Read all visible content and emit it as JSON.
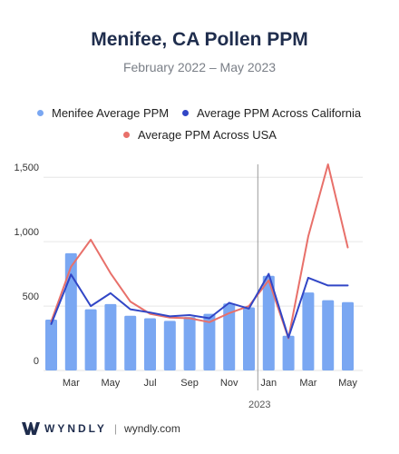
{
  "header": {
    "title": "Menifee, CA Pollen PPM",
    "subtitle": "February 2022 – May 2023"
  },
  "footer": {
    "brand": "WYNDLY",
    "separator": "|",
    "site": "wyndly.com"
  },
  "colors": {
    "bar": "#7aa7f2",
    "california": "#3146c6",
    "usa": "#e8706a",
    "grid": "#e6e6e6",
    "axis": "#9a9a9a"
  },
  "chart_data": {
    "type": "bar",
    "title": "Menifee, CA Pollen PPM",
    "subtitle": "February 2022 – May 2023",
    "categories": [
      "Feb 2022",
      "Mar 2022",
      "Apr 2022",
      "May 2022",
      "Jun 2022",
      "Jul 2022",
      "Aug 2022",
      "Sep 2022",
      "Oct 2022",
      "Nov 2022",
      "Dec 2022",
      "Jan 2023",
      "Feb 2023",
      "Mar 2023",
      "Apr 2023",
      "May 2023"
    ],
    "x_tick_labels": [
      "",
      "Mar",
      "",
      "May",
      "",
      "Jul",
      "",
      "Sep",
      "",
      "Nov",
      "",
      "Jan",
      "",
      "Mar",
      "",
      "May"
    ],
    "year_marker": {
      "label": "2023",
      "at_index": 11
    },
    "series": [
      {
        "name": "Menifee Average PPM",
        "type": "bar",
        "values": [
          395,
          910,
          475,
          515,
          425,
          405,
          385,
          415,
          440,
          520,
          490,
          735,
          270,
          605,
          545,
          530
        ]
      },
      {
        "name": "Average PPM Across California",
        "type": "line",
        "values": [
          360,
          745,
          500,
          600,
          475,
          450,
          420,
          430,
          405,
          525,
          480,
          750,
          255,
          720,
          660,
          660
        ]
      },
      {
        "name": "Average PPM Across USA",
        "type": "line",
        "values": [
          380,
          805,
          1015,
          755,
          535,
          440,
          410,
          405,
          375,
          445,
          500,
          700,
          250,
          1040,
          1600,
          955
        ]
      }
    ],
    "ylim": [
      0,
      1600
    ],
    "yticks": [
      0,
      500,
      1000,
      1500
    ],
    "ytick_labels": [
      "0",
      "500",
      "1,000",
      "1,500"
    ],
    "grid": true,
    "legend_position": "top"
  }
}
